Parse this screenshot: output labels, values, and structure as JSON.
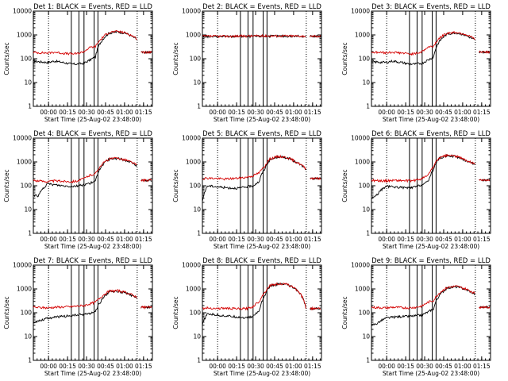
{
  "colors": {
    "events": "#000000",
    "lld": "#d40000",
    "background": "#ffffff"
  },
  "chart_data": [
    {
      "type": "line",
      "title": "Det 1: BLACK = Events, RED = LLD",
      "xlabel": "Start Time (25-Aug-02 23:48:00)",
      "ylabel": "Counts/sec",
      "xlim": [
        0,
        5640
      ],
      "ylim": [
        1,
        10000
      ],
      "yscale": "log",
      "x_ticks": [
        720,
        1620,
        2520,
        3420,
        4320,
        5220
      ],
      "x_tick_labels": [
        "00:00",
        "00:15",
        "00:30",
        "00:45",
        "01:00",
        "01:15"
      ],
      "y_ticks": [
        1,
        10,
        100,
        1000,
        10000
      ],
      "y_tick_labels": [
        "1",
        "10",
        "100",
        "1000",
        "10000"
      ],
      "dotted_lines": [
        720,
        4920
      ],
      "event_lines": [
        1800,
        2160,
        2400,
        2880,
        3060
      ],
      "series": [
        {
          "name": "Events",
          "x": [
            0,
            250,
            700,
            1000,
            1400,
            1800,
            2100,
            2400,
            2700,
            2950,
            3200,
            3600,
            4000,
            4400,
            4900
          ],
          "values": [
            80,
            75,
            70,
            80,
            70,
            60,
            60,
            65,
            90,
            120,
            500,
            1200,
            1350,
            1150,
            650
          ]
        },
        {
          "name": "LLD",
          "x": [
            0,
            250,
            700,
            1000,
            1400,
            1800,
            2100,
            2400,
            2700,
            2950,
            3200,
            3600,
            4000,
            4400,
            4900
          ],
          "values": [
            185,
            180,
            175,
            190,
            170,
            160,
            165,
            200,
            300,
            330,
            650,
            1300,
            1400,
            1200,
            700
          ]
        }
      ]
    },
    {
      "type": "line",
      "title": "Det 2: BLACK = Events, RED = LLD",
      "xlabel": "Start Time (25-Aug-02 23:48:00)",
      "ylabel": "Counts/sec",
      "xlim": [
        0,
        5640
      ],
      "ylim": [
        1,
        10000
      ],
      "yscale": "log",
      "x_ticks": [
        720,
        1620,
        2520,
        3420,
        4320,
        5220
      ],
      "x_tick_labels": [
        "00:00",
        "00:15",
        "00:30",
        "00:45",
        "01:00",
        "01:15"
      ],
      "y_ticks": [
        1,
        10,
        100,
        1000,
        10000
      ],
      "y_tick_labels": [
        "1",
        "10",
        "100",
        "1000",
        "10000"
      ],
      "dotted_lines": [
        720,
        4920
      ],
      "event_lines": [
        1800,
        2160,
        2400,
        2880,
        3060
      ],
      "series": [
        {
          "name": "Events",
          "x": [
            0,
            1000,
            2000,
            3000,
            4000,
            4900
          ],
          "values": [
            850,
            860,
            870,
            880,
            890,
            880
          ]
        },
        {
          "name": "LLD",
          "x": [
            0,
            1000,
            2000,
            3000,
            4000,
            4900
          ],
          "values": [
            880,
            880,
            900,
            920,
            910,
            900
          ]
        }
      ]
    },
    {
      "type": "line",
      "title": "Det 3: BLACK = Events, RED = LLD",
      "xlabel": "Start Time (25-Aug-02 23:48:00)",
      "ylabel": "Counts/sec",
      "xlim": [
        0,
        5640
      ],
      "ylim": [
        1,
        10000
      ],
      "yscale": "log",
      "x_ticks": [
        720,
        1620,
        2520,
        3420,
        4320,
        5220
      ],
      "x_tick_labels": [
        "00:00",
        "00:15",
        "00:30",
        "00:45",
        "01:00",
        "01:15"
      ],
      "y_ticks": [
        1,
        10,
        100,
        1000,
        10000
      ],
      "y_tick_labels": [
        "1",
        "10",
        "100",
        "1000",
        "10000"
      ],
      "dotted_lines": [
        720,
        4920
      ],
      "event_lines": [
        1800,
        2160,
        2400,
        2880,
        3060
      ],
      "series": [
        {
          "name": "Events",
          "x": [
            0,
            250,
            700,
            1000,
            1400,
            1800,
            2100,
            2400,
            2700,
            2950,
            3200,
            3600,
            4000,
            4400,
            4900
          ],
          "values": [
            75,
            72,
            70,
            80,
            70,
            60,
            60,
            65,
            90,
            120,
            500,
            1100,
            1250,
            1000,
            600
          ]
        },
        {
          "name": "LLD",
          "x": [
            0,
            250,
            700,
            1000,
            1400,
            1800,
            2100,
            2400,
            2700,
            2950,
            3200,
            3600,
            4000,
            4400,
            4900
          ],
          "values": [
            190,
            185,
            180,
            190,
            175,
            160,
            165,
            200,
            310,
            340,
            700,
            1200,
            1300,
            1100,
            650
          ]
        }
      ]
    },
    {
      "type": "line",
      "title": "Det 4: BLACK = Events, RED = LLD",
      "xlabel": "Start Time (25-Aug-02 23:48:00)",
      "ylabel": "Counts/sec",
      "xlim": [
        0,
        5640
      ],
      "ylim": [
        1,
        10000
      ],
      "yscale": "log",
      "x_ticks": [
        720,
        1620,
        2520,
        3420,
        4320,
        5220
      ],
      "x_tick_labels": [
        "00:00",
        "00:15",
        "00:30",
        "00:45",
        "01:00",
        "01:15"
      ],
      "y_ticks": [
        1,
        10,
        100,
        1000,
        10000
      ],
      "y_tick_labels": [
        "1",
        "10",
        "100",
        "1000",
        "10000"
      ],
      "dotted_lines": [
        720,
        4920
      ],
      "event_lines": [
        1800,
        2160,
        2400,
        2880,
        3060
      ],
      "series": [
        {
          "name": "Events",
          "x": [
            0,
            250,
            700,
            1000,
            1400,
            1800,
            2100,
            2400,
            2700,
            2950,
            3200,
            3600,
            4000,
            4400,
            4900
          ],
          "values": [
            40,
            38,
            120,
            110,
            100,
            95,
            100,
            110,
            130,
            150,
            600,
            1300,
            1400,
            1150,
            700
          ]
        },
        {
          "name": "LLD",
          "x": [
            0,
            250,
            700,
            1000,
            1400,
            1800,
            2100,
            2400,
            2700,
            2950,
            3200,
            3600,
            4000,
            4400,
            4900
          ],
          "values": [
            170,
            160,
            150,
            160,
            155,
            150,
            160,
            200,
            280,
            320,
            700,
            1350,
            1450,
            1200,
            750
          ]
        }
      ]
    },
    {
      "type": "line",
      "title": "Det 5: BLACK = Events, RED = LLD",
      "xlabel": "Start Time (25-Aug-02 23:48:00)",
      "ylabel": "Counts/sec",
      "xlim": [
        0,
        5640
      ],
      "ylim": [
        1,
        10000
      ],
      "yscale": "log",
      "x_ticks": [
        720,
        1620,
        2520,
        3420,
        4320,
        5220
      ],
      "x_tick_labels": [
        "00:00",
        "00:15",
        "00:30",
        "00:45",
        "01:00",
        "01:15"
      ],
      "y_ticks": [
        1,
        10,
        100,
        1000,
        10000
      ],
      "y_tick_labels": [
        "1",
        "10",
        "100",
        "1000",
        "10000"
      ],
      "dotted_lines": [
        720,
        4920
      ],
      "event_lines": [
        1800,
        2160,
        2400,
        2880,
        3060
      ],
      "series": [
        {
          "name": "Events",
          "x": [
            0,
            250,
            700,
            1000,
            1400,
            1800,
            2100,
            2400,
            2700,
            2950,
            3200,
            3600,
            4000,
            4400,
            4900
          ],
          "values": [
            20,
            100,
            90,
            85,
            80,
            80,
            90,
            100,
            150,
            500,
            1200,
            1650,
            1500,
            1000,
            500
          ]
        },
        {
          "name": "LLD",
          "x": [
            0,
            250,
            700,
            1000,
            1400,
            1800,
            2100,
            2400,
            2700,
            2950,
            3200,
            3600,
            4000,
            4400,
            4900
          ],
          "values": [
            200,
            210,
            200,
            190,
            200,
            210,
            230,
            260,
            350,
            650,
            1350,
            1700,
            1550,
            1050,
            520
          ]
        }
      ]
    },
    {
      "type": "line",
      "title": "Det 6: BLACK = Events, RED = LLD",
      "xlabel": "Start Time (25-Aug-02 23:48:00)",
      "ylabel": "Counts/sec",
      "xlim": [
        0,
        5640
      ],
      "ylim": [
        1,
        10000
      ],
      "yscale": "log",
      "x_ticks": [
        720,
        1620,
        2520,
        3420,
        4320,
        5220
      ],
      "x_tick_labels": [
        "00:00",
        "00:15",
        "00:30",
        "00:45",
        "01:00",
        "01:15"
      ],
      "y_ticks": [
        1,
        10,
        100,
        1000,
        10000
      ],
      "y_tick_labels": [
        "1",
        "10",
        "100",
        "1000",
        "10000"
      ],
      "dotted_lines": [
        720,
        4920
      ],
      "event_lines": [
        1800,
        2160,
        2400,
        2880,
        3060
      ],
      "series": [
        {
          "name": "Events",
          "x": [
            0,
            250,
            700,
            1000,
            1400,
            1800,
            2100,
            2400,
            2700,
            2950,
            3200,
            3600,
            4000,
            4400,
            4900
          ],
          "values": [
            30,
            40,
            95,
            90,
            85,
            80,
            90,
            110,
            150,
            500,
            1400,
            1850,
            1700,
            1200,
            800
          ]
        },
        {
          "name": "LLD",
          "x": [
            0,
            250,
            700,
            1000,
            1400,
            1800,
            2100,
            2400,
            2700,
            2950,
            3200,
            3600,
            4000,
            4400,
            4900
          ],
          "values": [
            170,
            165,
            160,
            170,
            165,
            160,
            170,
            200,
            280,
            650,
            1450,
            1900,
            1750,
            1250,
            850
          ]
        }
      ]
    },
    {
      "type": "line",
      "title": "Det 7: BLACK = Events, RED = LLD",
      "xlabel": "Start Time (25-Aug-02 23:48:00)",
      "ylabel": "Counts/sec",
      "xlim": [
        0,
        5640
      ],
      "ylim": [
        1,
        10000
      ],
      "yscale": "log",
      "x_ticks": [
        720,
        1620,
        2520,
        3420,
        4320,
        5220
      ],
      "x_tick_labels": [
        "00:00",
        "00:15",
        "00:30",
        "00:45",
        "01:00",
        "01:15"
      ],
      "y_ticks": [
        1,
        10,
        100,
        1000,
        10000
      ],
      "y_tick_labels": [
        "1",
        "10",
        "100",
        "1000",
        "10000"
      ],
      "dotted_lines": [
        720,
        4920
      ],
      "event_lines": [
        1800,
        2160,
        2400,
        2880,
        3060
      ],
      "series": [
        {
          "name": "Events",
          "x": [
            0,
            250,
            700,
            1000,
            1400,
            1800,
            2100,
            2400,
            2700,
            2950,
            3200,
            3600,
            4000,
            4400,
            4900
          ],
          "values": [
            40,
            45,
            60,
            65,
            70,
            75,
            80,
            85,
            95,
            110,
            300,
            750,
            800,
            650,
            400
          ]
        },
        {
          "name": "LLD",
          "x": [
            0,
            250,
            700,
            1000,
            1400,
            1800,
            2100,
            2400,
            2700,
            2950,
            3200,
            3600,
            4000,
            4400,
            4900
          ],
          "values": [
            170,
            165,
            160,
            170,
            175,
            180,
            190,
            200,
            240,
            280,
            450,
            800,
            850,
            700,
            450
          ]
        }
      ]
    },
    {
      "type": "line",
      "title": "Det 8: BLACK = Events, RED = LLD",
      "xlabel": "Start Time (25-Aug-02 23:48:00)",
      "ylabel": "Counts/sec",
      "xlim": [
        0,
        5640
      ],
      "ylim": [
        1,
        10000
      ],
      "yscale": "log",
      "x_ticks": [
        720,
        1620,
        2520,
        3420,
        4320,
        5220
      ],
      "x_tick_labels": [
        "00:00",
        "00:15",
        "00:30",
        "00:45",
        "01:00",
        "01:15"
      ],
      "y_ticks": [
        1,
        10,
        100,
        1000,
        10000
      ],
      "y_tick_labels": [
        "1",
        "10",
        "100",
        "1000",
        "10000"
      ],
      "dotted_lines": [
        720,
        4920
      ],
      "event_lines": [
        1800,
        2160,
        2400,
        2880,
        3060
      ],
      "series": [
        {
          "name": "Events",
          "x": [
            0,
            250,
            700,
            1000,
            1400,
            1800,
            2100,
            2400,
            2700,
            2950,
            3200,
            3600,
            4000,
            4400,
            4900
          ],
          "values": [
            30,
            90,
            80,
            75,
            70,
            65,
            60,
            70,
            120,
            500,
            1300,
            1600,
            1500,
            1000,
            150
          ]
        },
        {
          "name": "LLD",
          "x": [
            0,
            250,
            700,
            1000,
            1400,
            1800,
            2100,
            2400,
            2700,
            2950,
            3200,
            3600,
            4000,
            4400,
            4900
          ],
          "values": [
            150,
            160,
            150,
            155,
            150,
            145,
            150,
            180,
            300,
            700,
            1400,
            1650,
            1550,
            1050,
            160
          ]
        }
      ]
    },
    {
      "type": "line",
      "title": "Det 9: BLACK = Events, RED = LLD",
      "xlabel": "Start Time (25-Aug-02 23:48:00)",
      "ylabel": "Counts/sec",
      "xlim": [
        0,
        5640
      ],
      "ylim": [
        1,
        10000
      ],
      "yscale": "log",
      "x_ticks": [
        720,
        1620,
        2520,
        3420,
        4320,
        5220
      ],
      "x_tick_labels": [
        "00:00",
        "00:15",
        "00:30",
        "00:45",
        "01:00",
        "01:15"
      ],
      "y_ticks": [
        1,
        10,
        100,
        1000,
        10000
      ],
      "y_tick_labels": [
        "1",
        "10",
        "100",
        "1000",
        "10000"
      ],
      "dotted_lines": [
        720,
        4920
      ],
      "event_lines": [
        1800,
        2160,
        2400,
        2880,
        3060
      ],
      "series": [
        {
          "name": "Events",
          "x": [
            0,
            250,
            700,
            1000,
            1400,
            1800,
            2100,
            2400,
            2700,
            2950,
            3200,
            3600,
            4000,
            4400,
            4900
          ],
          "values": [
            30,
            35,
            60,
            65,
            70,
            70,
            75,
            80,
            110,
            150,
            500,
            1100,
            1250,
            1000,
            600
          ]
        },
        {
          "name": "LLD",
          "x": [
            0,
            250,
            700,
            1000,
            1400,
            1800,
            2100,
            2400,
            2700,
            2950,
            3200,
            3600,
            4000,
            4400,
            4900
          ],
          "values": [
            170,
            165,
            160,
            170,
            165,
            160,
            170,
            190,
            280,
            330,
            650,
            1150,
            1300,
            1050,
            650
          ]
        }
      ]
    }
  ]
}
